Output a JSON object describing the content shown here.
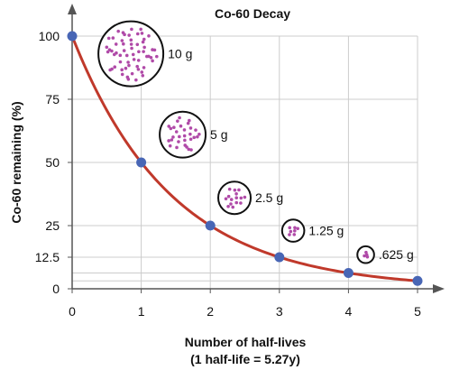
{
  "chart_data": {
    "type": "line",
    "title": "Co-60 Decay",
    "xlabel": "Number of half-lives",
    "xlabel_note": "(1 half-life = 5.27y)",
    "ylabel": "Co-60 remaining (%)",
    "x": [
      0,
      1,
      2,
      3,
      4,
      5
    ],
    "y": [
      100,
      50,
      25,
      12.5,
      6.25,
      3.125
    ],
    "xlim": [
      0,
      5
    ],
    "ylim": [
      0,
      100
    ],
    "x_ticks": [
      0,
      1,
      2,
      3,
      4,
      5
    ],
    "x_tick_labels": [
      "0",
      "1",
      "2",
      "3",
      "4",
      "5"
    ],
    "y_ticks": [
      0,
      12.5,
      25,
      50,
      75,
      100
    ],
    "y_tick_labels": [
      "0",
      "12.5",
      "25",
      "50",
      "75",
      "100"
    ],
    "grid": true,
    "colors": {
      "curve": "#c0392b",
      "points": "#4866b5",
      "dots": "#b04aa8",
      "grid": "#cccccc",
      "axis": "#555555"
    },
    "samples": [
      {
        "x": 0.85,
        "y": 93,
        "amount": "10 g",
        "dots": 60
      },
      {
        "x": 1.6,
        "y": 61,
        "amount": "5 g",
        "dots": 30
      },
      {
        "x": 2.35,
        "y": 36,
        "amount": "2.5 g",
        "dots": 15
      },
      {
        "x": 3.2,
        "y": 23,
        "amount": "1.25 g",
        "dots": 7
      },
      {
        "x": 4.25,
        "y": 13.5,
        "amount": ".625 g",
        "dots": 4
      }
    ]
  }
}
